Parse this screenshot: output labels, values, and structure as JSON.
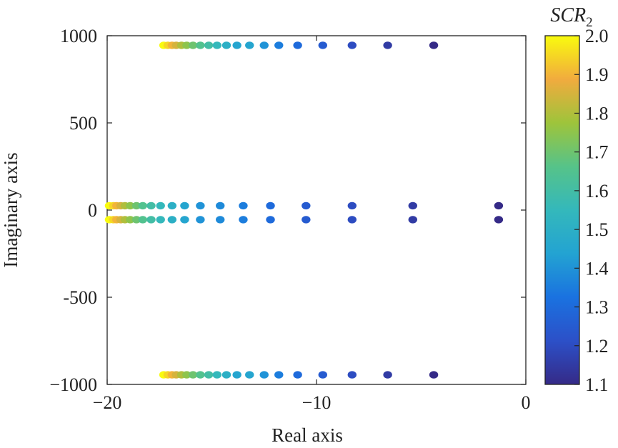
{
  "chart_data": {
    "type": "scatter",
    "title": "",
    "xlabel": "Real axis",
    "ylabel": "Imaginary axis",
    "xlim": [
      -20,
      0
    ],
    "ylim": [
      -1000,
      1000
    ],
    "x_ticks": [
      -20,
      -10,
      0
    ],
    "x_tick_labels": [
      "−20",
      "−10",
      "0"
    ],
    "y_ticks": [
      1000,
      500,
      0,
      -500,
      -1000
    ],
    "y_tick_labels": [
      "1000",
      "500",
      "0",
      "-500",
      "−1000"
    ],
    "grid": false,
    "colorbar": {
      "title_main": "SCR",
      "title_sub": "2",
      "range": [
        1.1,
        2.0
      ],
      "ticks": [
        2.0,
        1.9,
        1.8,
        1.7,
        1.6,
        1.5,
        1.4,
        1.3,
        1.2,
        1.1
      ],
      "tick_labels": [
        "2.0",
        "1.9",
        "1.8",
        "1.7",
        "1.6",
        "1.5",
        "1.4",
        "1.3",
        "1.2",
        "1.1"
      ],
      "colormap": "parula"
    },
    "marker_color_encodes": "SCR2",
    "series": [
      {
        "points": [
          {
            "x": -17.3,
            "y": 945,
            "c": 2.0
          },
          {
            "x": -17.1,
            "y": 945,
            "c": 1.95
          },
          {
            "x": -16.9,
            "y": 945,
            "c": 1.9
          },
          {
            "x": -16.7,
            "y": 945,
            "c": 1.85
          },
          {
            "x": -16.45,
            "y": 945,
            "c": 1.8
          },
          {
            "x": -16.2,
            "y": 945,
            "c": 1.75
          },
          {
            "x": -15.9,
            "y": 945,
            "c": 1.7
          },
          {
            "x": -15.55,
            "y": 945,
            "c": 1.65
          },
          {
            "x": -15.15,
            "y": 945,
            "c": 1.6
          },
          {
            "x": -14.75,
            "y": 945,
            "c": 1.55
          },
          {
            "x": -14.3,
            "y": 945,
            "c": 1.5
          },
          {
            "x": -13.8,
            "y": 945,
            "c": 1.45
          },
          {
            "x": -13.2,
            "y": 945,
            "c": 1.45
          },
          {
            "x": -12.5,
            "y": 945,
            "c": 1.4
          },
          {
            "x": -11.8,
            "y": 945,
            "c": 1.35
          },
          {
            "x": -10.9,
            "y": 945,
            "c": 1.3
          },
          {
            "x": -9.7,
            "y": 945,
            "c": 1.25
          },
          {
            "x": -8.3,
            "y": 945,
            "c": 1.2
          },
          {
            "x": -6.6,
            "y": 945,
            "c": 1.15
          },
          {
            "x": -4.4,
            "y": 945,
            "c": 1.1
          }
        ]
      },
      {
        "points": [
          {
            "x": -17.3,
            "y": -945,
            "c": 2.0
          },
          {
            "x": -17.1,
            "y": -945,
            "c": 1.95
          },
          {
            "x": -16.9,
            "y": -945,
            "c": 1.9
          },
          {
            "x": -16.7,
            "y": -945,
            "c": 1.85
          },
          {
            "x": -16.45,
            "y": -945,
            "c": 1.8
          },
          {
            "x": -16.2,
            "y": -945,
            "c": 1.75
          },
          {
            "x": -15.9,
            "y": -945,
            "c": 1.7
          },
          {
            "x": -15.55,
            "y": -945,
            "c": 1.65
          },
          {
            "x": -15.15,
            "y": -945,
            "c": 1.6
          },
          {
            "x": -14.75,
            "y": -945,
            "c": 1.55
          },
          {
            "x": -14.3,
            "y": -945,
            "c": 1.5
          },
          {
            "x": -13.8,
            "y": -945,
            "c": 1.45
          },
          {
            "x": -13.2,
            "y": -945,
            "c": 1.45
          },
          {
            "x": -12.5,
            "y": -945,
            "c": 1.4
          },
          {
            "x": -11.8,
            "y": -945,
            "c": 1.35
          },
          {
            "x": -10.9,
            "y": -945,
            "c": 1.3
          },
          {
            "x": -9.7,
            "y": -945,
            "c": 1.25
          },
          {
            "x": -8.3,
            "y": -945,
            "c": 1.2
          },
          {
            "x": -6.6,
            "y": -945,
            "c": 1.15
          },
          {
            "x": -4.4,
            "y": -945,
            "c": 1.1
          }
        ]
      },
      {
        "points": [
          {
            "x": -19.9,
            "y": 25,
            "c": 2.0
          },
          {
            "x": -19.7,
            "y": 25,
            "c": 1.95
          },
          {
            "x": -19.55,
            "y": 25,
            "c": 1.9
          },
          {
            "x": -19.35,
            "y": 25,
            "c": 1.85
          },
          {
            "x": -19.15,
            "y": 25,
            "c": 1.8
          },
          {
            "x": -18.9,
            "y": 25,
            "c": 1.75
          },
          {
            "x": -18.6,
            "y": 25,
            "c": 1.7
          },
          {
            "x": -18.3,
            "y": 25,
            "c": 1.65
          },
          {
            "x": -17.9,
            "y": 25,
            "c": 1.6
          },
          {
            "x": -17.45,
            "y": 25,
            "c": 1.55
          },
          {
            "x": -16.9,
            "y": 25,
            "c": 1.5
          },
          {
            "x": -16.3,
            "y": 25,
            "c": 1.45
          },
          {
            "x": -15.55,
            "y": 25,
            "c": 1.4
          },
          {
            "x": -14.6,
            "y": 25,
            "c": 1.38
          },
          {
            "x": -13.5,
            "y": 25,
            "c": 1.35
          },
          {
            "x": -12.2,
            "y": 25,
            "c": 1.3
          },
          {
            "x": -10.5,
            "y": 25,
            "c": 1.25
          },
          {
            "x": -8.3,
            "y": 25,
            "c": 1.2
          },
          {
            "x": -5.4,
            "y": 25,
            "c": 1.15
          },
          {
            "x": -1.3,
            "y": 25,
            "c": 1.1
          }
        ]
      },
      {
        "points": [
          {
            "x": -19.9,
            "y": -55,
            "c": 2.0
          },
          {
            "x": -19.7,
            "y": -55,
            "c": 1.95
          },
          {
            "x": -19.55,
            "y": -55,
            "c": 1.9
          },
          {
            "x": -19.35,
            "y": -55,
            "c": 1.85
          },
          {
            "x": -19.15,
            "y": -55,
            "c": 1.8
          },
          {
            "x": -18.9,
            "y": -55,
            "c": 1.75
          },
          {
            "x": -18.6,
            "y": -55,
            "c": 1.7
          },
          {
            "x": -18.3,
            "y": -55,
            "c": 1.65
          },
          {
            "x": -17.9,
            "y": -55,
            "c": 1.6
          },
          {
            "x": -17.45,
            "y": -55,
            "c": 1.55
          },
          {
            "x": -16.9,
            "y": -55,
            "c": 1.5
          },
          {
            "x": -16.3,
            "y": -55,
            "c": 1.45
          },
          {
            "x": -15.55,
            "y": -55,
            "c": 1.4
          },
          {
            "x": -14.6,
            "y": -55,
            "c": 1.38
          },
          {
            "x": -13.5,
            "y": -55,
            "c": 1.35
          },
          {
            "x": -12.2,
            "y": -55,
            "c": 1.3
          },
          {
            "x": -10.5,
            "y": -55,
            "c": 1.25
          },
          {
            "x": -8.3,
            "y": -55,
            "c": 1.2
          },
          {
            "x": -5.4,
            "y": -55,
            "c": 1.15
          },
          {
            "x": -1.3,
            "y": -55,
            "c": 1.1
          }
        ]
      }
    ]
  }
}
